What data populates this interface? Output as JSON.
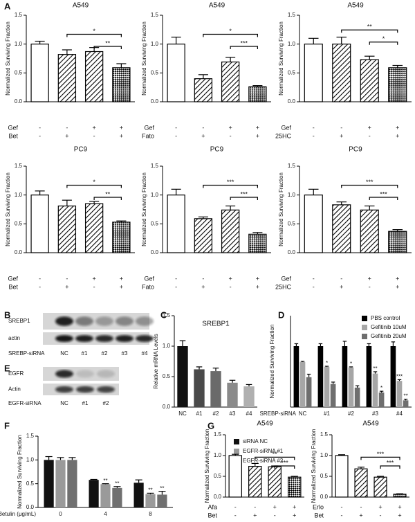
{
  "chart_data": [
    {
      "type": "bar",
      "title": "A549",
      "ylabel": "Normalized Surviving Fraction",
      "ylim": [
        0,
        1.5
      ],
      "yticks": [
        {
          "value": 0,
          "label": "0.0"
        },
        0.5,
        {
          "value": 1,
          "label": "1.0"
        },
        {
          "value": 1.5,
          "label": "1.5"
        }
      ],
      "values": [
        1.0,
        0.82,
        0.87,
        0.59
      ],
      "errors": [
        0.05,
        0.08,
        0.07,
        0.07
      ],
      "patterns": [
        "open",
        "hatch",
        "hatch",
        "cross"
      ],
      "conditions": [
        {
          "name": "Gef",
          "values": [
            "-",
            "-",
            "+",
            "+"
          ]
        },
        {
          "name": "Bet",
          "values": [
            "-",
            "+",
            "-",
            "+"
          ]
        }
      ],
      "annotations": [
        {
          "text": "*",
          "bars": [
            1,
            3
          ]
        },
        {
          "text": "**",
          "bars": [
            2,
            3
          ]
        }
      ]
    },
    {
      "type": "bar",
      "title": "A549",
      "ylabel": "Normalized Surviving Fraction",
      "ylim": [
        0,
        1.5
      ],
      "yticks": [
        {
          "value": 0,
          "label": "0.0"
        },
        0.5,
        {
          "value": 1,
          "label": "1.0"
        },
        {
          "value": 1.5,
          "label": "1.5"
        }
      ],
      "values": [
        1.0,
        0.4,
        0.69,
        0.26
      ],
      "errors": [
        0.12,
        0.07,
        0.08,
        0.02
      ],
      "patterns": [
        "open",
        "hatch",
        "hatch",
        "cross"
      ],
      "conditions": [
        {
          "name": "Gef",
          "values": [
            "-",
            "-",
            "+",
            "+"
          ]
        },
        {
          "name": "Fato",
          "values": [
            "-",
            "+",
            "-",
            "+"
          ]
        }
      ],
      "annotations": [
        {
          "text": "*",
          "bars": [
            1,
            3
          ]
        },
        {
          "text": "***",
          "bars": [
            2,
            3
          ]
        }
      ]
    },
    {
      "type": "bar",
      "title": "A549",
      "ylabel": "Normalized Surviving Fraction",
      "ylim": [
        0,
        1.5
      ],
      "yticks": [
        {
          "value": 0,
          "label": "0.0"
        },
        0.5,
        {
          "value": 1,
          "label": "1.0"
        },
        {
          "value": 1.5,
          "label": "1.5"
        }
      ],
      "values": [
        1.0,
        1.0,
        0.73,
        0.59
      ],
      "errors": [
        0.1,
        0.12,
        0.06,
        0.04
      ],
      "patterns": [
        "open",
        "hatch",
        "hatch",
        "cross"
      ],
      "conditions": [
        {
          "name": "Gef",
          "values": [
            "-",
            "-",
            "+",
            "+"
          ]
        },
        {
          "name": "25HC",
          "values": [
            "-",
            "+",
            "-",
            "+"
          ]
        }
      ],
      "annotations": [
        {
          "text": "**",
          "bars": [
            1,
            3
          ]
        },
        {
          "text": "*",
          "bars": [
            2,
            3
          ]
        }
      ]
    },
    {
      "type": "bar",
      "title": "PC9",
      "ylabel": "Normalized Surviving Fraction",
      "ylim": [
        0,
        1.5
      ],
      "yticks": [
        {
          "value": 0,
          "label": "0.0"
        },
        0.5,
        {
          "value": 1,
          "label": "1.0"
        },
        {
          "value": 1.5,
          "label": "1.5"
        }
      ],
      "values": [
        1.0,
        0.81,
        0.85,
        0.53
      ],
      "errors": [
        0.07,
        0.1,
        0.04,
        0.02
      ],
      "patterns": [
        "open",
        "hatch",
        "hatch",
        "cross"
      ],
      "conditions": [
        {
          "name": "Gef",
          "values": [
            "-",
            "-",
            "+",
            "+"
          ]
        },
        {
          "name": "Bet",
          "values": [
            "-",
            "+",
            "-",
            "+"
          ]
        }
      ],
      "annotations": [
        {
          "text": "*",
          "bars": [
            1,
            3
          ]
        },
        {
          "text": "**",
          "bars": [
            2,
            3
          ]
        }
      ]
    },
    {
      "type": "bar",
      "title": "PC9",
      "ylabel": "Normalized Surviving Fraction",
      "ylim": [
        0,
        1.5
      ],
      "yticks": [
        {
          "value": 0,
          "label": "0.0"
        },
        0.5,
        {
          "value": 1,
          "label": "1.0"
        },
        {
          "value": 1.5,
          "label": "1.5"
        }
      ],
      "values": [
        1.0,
        0.59,
        0.74,
        0.32
      ],
      "errors": [
        0.1,
        0.03,
        0.07,
        0.03
      ],
      "patterns": [
        "open",
        "hatch",
        "hatch",
        "cross"
      ],
      "conditions": [
        {
          "name": "Gef",
          "values": [
            "-",
            "-",
            "+",
            "+"
          ]
        },
        {
          "name": "Fato",
          "values": [
            "-",
            "+",
            "-",
            "+"
          ]
        }
      ],
      "annotations": [
        {
          "text": "***",
          "bars": [
            1,
            3
          ]
        },
        {
          "text": "***",
          "bars": [
            2,
            3
          ]
        }
      ]
    },
    {
      "type": "bar",
      "title": "PC9",
      "ylabel": "Normalized Surviving Fraction",
      "ylim": [
        0,
        1.5
      ],
      "yticks": [
        {
          "value": 0,
          "label": "0.0"
        },
        0.5,
        {
          "value": 1,
          "label": "1.0"
        },
        {
          "value": 1.5,
          "label": "1.5"
        }
      ],
      "values": [
        1.0,
        0.83,
        0.74,
        0.37
      ],
      "errors": [
        0.1,
        0.05,
        0.07,
        0.03
      ],
      "patterns": [
        "open",
        "hatch",
        "hatch",
        "cross"
      ],
      "conditions": [
        {
          "name": "Gef",
          "values": [
            "-",
            "-",
            "+",
            "+"
          ]
        },
        {
          "name": "25HC",
          "values": [
            "-",
            "+",
            "-",
            "+"
          ]
        }
      ],
      "annotations": [
        {
          "text": "***",
          "bars": [
            1,
            3
          ]
        },
        {
          "text": "***",
          "bars": [
            2,
            3
          ]
        }
      ]
    },
    {
      "type": "bar",
      "title": "SREBP1",
      "ylabel": "Relative mRNA Levels",
      "ylim": [
        0,
        1.5
      ],
      "yticks": [
        {
          "value": 0,
          "label": "0.0"
        },
        0.5,
        {
          "value": 1,
          "label": "1.0"
        },
        {
          "value": 1.5,
          "label": "1.5"
        }
      ],
      "categories": [
        "NC",
        "#1",
        "#2",
        "#3",
        "#4"
      ],
      "values": [
        1.0,
        0.62,
        0.59,
        0.4,
        0.34
      ],
      "errors": [
        0.09,
        0.04,
        0.05,
        0.04,
        0.03
      ],
      "colors": [
        "#111111",
        "#4a4a4a",
        "#6a6a6a",
        "#8a8a8a",
        "#b0b0b0"
      ]
    },
    {
      "type": "grouped_bar",
      "ylabel": "Normalized Surviving Fraction",
      "xlabel": "SREBP-siRNA",
      "ylim": [
        0,
        1.5
      ],
      "categories": [
        "NC",
        "#1",
        "#2",
        "#3",
        "#4"
      ],
      "legend": "top-right",
      "series": [
        {
          "name": "PBS control",
          "color": "#000000",
          "values": [
            1.0,
            1.0,
            1.0,
            1.0,
            1.0
          ],
          "errors": [
            0.04,
            0.04,
            0.08,
            0.04,
            0.07
          ]
        },
        {
          "name": "Gefitinib 10uM",
          "color": "#a6a6a6",
          "values": [
            0.74,
            0.66,
            0.65,
            0.55,
            0.43
          ],
          "errors": [
            0.01,
            0.01,
            0.01,
            0.03,
            0.02
          ]
        },
        {
          "name": "Gefitinib 20uM",
          "color": "#6e6e6e",
          "values": [
            0.49,
            0.38,
            0.32,
            0.24,
            0.11
          ],
          "errors": [
            0.05,
            0.03,
            0.03,
            0.02,
            0.02
          ]
        }
      ],
      "annotations": [
        {
          "text": "*",
          "series": 1,
          "category": 1
        },
        {
          "text": "*",
          "series": 1,
          "category": 2
        },
        {
          "text": "**",
          "series": 1,
          "category": 3
        },
        {
          "text": "*",
          "series": 2,
          "category": 3
        },
        {
          "text": "***",
          "series": 1,
          "category": 4
        },
        {
          "text": "**",
          "series": 2,
          "category": 4
        }
      ]
    },
    {
      "type": "grouped_bar",
      "ylabel": "Normalized Surviving Fraction",
      "xlabel": "Betulin (μg/mL)",
      "ylim": [
        0,
        1.5
      ],
      "yticks": [
        {
          "value": 0,
          "label": "0.0"
        },
        0.5,
        {
          "value": 1,
          "label": "1.0"
        },
        {
          "value": 1.5,
          "label": "1.5"
        }
      ],
      "categories": [
        "0",
        "4",
        "8"
      ],
      "legend": "right",
      "series": [
        {
          "name": "siRNA NC",
          "color": "#111111",
          "values": [
            1.0,
            0.58,
            0.52
          ],
          "errors": [
            0.07,
            0.01,
            0.06
          ]
        },
        {
          "name": "EGFR-siRNA #1",
          "color": "#9a9a9a",
          "values": [
            1.0,
            0.49,
            0.28
          ],
          "errors": [
            0.05,
            0.01,
            0.02
          ]
        },
        {
          "name": "EGFR-siRNA #2",
          "color": "#707070",
          "values": [
            1.0,
            0.41,
            0.27
          ],
          "errors": [
            0.05,
            0.03,
            0.07
          ]
        }
      ],
      "annotations": [
        {
          "text": "**",
          "series": 1,
          "category": 1
        },
        {
          "text": "**",
          "series": 2,
          "category": 1
        },
        {
          "text": "**",
          "series": 1,
          "category": 2
        },
        {
          "text": "**",
          "series": 2,
          "category": 2
        }
      ]
    },
    {
      "type": "bar",
      "title": "A549",
      "ylabel": "Normalized Surviving Fraction",
      "ylim": [
        0,
        1.5
      ],
      "yticks": [
        {
          "value": 0,
          "label": "0.0"
        },
        0.5,
        {
          "value": 1,
          "label": "1.0"
        },
        {
          "value": 1.5,
          "label": "1.5"
        }
      ],
      "values": [
        1.0,
        0.74,
        0.73,
        0.48
      ],
      "errors": [
        0.03,
        0.07,
        0.02,
        0.02
      ],
      "patterns": [
        "open",
        "hatch",
        "hatch",
        "cross"
      ],
      "conditions": [
        {
          "name": "Afa",
          "values": [
            "-",
            "-",
            "+",
            "+"
          ]
        },
        {
          "name": "Bet",
          "values": [
            "-",
            "+",
            "-",
            "+"
          ]
        }
      ],
      "annotations": [
        {
          "text": "**",
          "bars": [
            1,
            3
          ]
        },
        {
          "text": "***",
          "bars": [
            2,
            3
          ]
        }
      ]
    },
    {
      "type": "bar",
      "title": "A549",
      "ylabel": "Normalized Surviving Fraction",
      "ylim": [
        0,
        1.5
      ],
      "yticks": [
        {
          "value": 0,
          "label": "0.0"
        },
        0.5,
        {
          "value": 1,
          "label": "1.0"
        },
        {
          "value": 1.5,
          "label": "1.5"
        }
      ],
      "values": [
        1.0,
        0.68,
        0.48,
        0.07
      ],
      "errors": [
        0.02,
        0.04,
        0.02,
        0.01
      ],
      "patterns": [
        "open",
        "hatch",
        "hatch",
        "cross"
      ],
      "conditions": [
        {
          "name": "Erlo",
          "values": [
            "-",
            "-",
            "+",
            "+"
          ]
        },
        {
          "name": "Bet",
          "values": [
            "-",
            "+",
            "-",
            "+"
          ]
        }
      ],
      "annotations": [
        {
          "text": "***",
          "bars": [
            1,
            3
          ]
        },
        {
          "text": "***",
          "bars": [
            2,
            3
          ]
        }
      ]
    }
  ],
  "figure": {
    "panel_labels": [
      "A",
      "B",
      "C",
      "D",
      "E",
      "F",
      "G"
    ],
    "blots": [
      {
        "bands": [
          "SREBP1",
          "actin"
        ],
        "row_label": "SREBP-siRNA",
        "lanes": [
          "NC",
          "#1",
          "#2",
          "#3",
          "#4"
        ]
      },
      {
        "bands": [
          "EGFR",
          "Actin"
        ],
        "row_label": "EGFR-siRNA",
        "lanes": [
          "NC",
          "#1",
          "#2"
        ]
      }
    ]
  }
}
